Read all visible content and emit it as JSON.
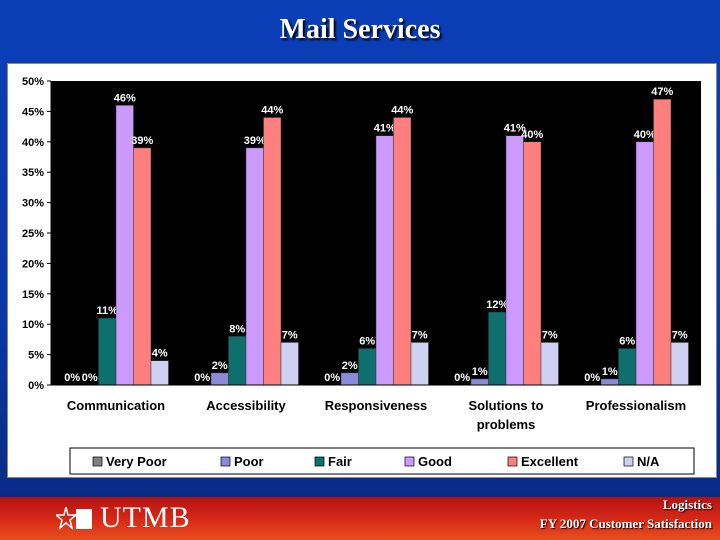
{
  "slide": {
    "title": "Mail Services",
    "footer_line1": "Logistics",
    "footer_line2": "FY 2007 Customer Satisfaction",
    "logo_text": "UTMB"
  },
  "chart_data": {
    "type": "bar",
    "categories": [
      "Communication",
      "Accessibility",
      "Responsiveness",
      "Solutions to problems",
      "Professionalism"
    ],
    "series": [
      {
        "name": "Very Poor",
        "color": "#808080",
        "values": [
          0,
          0,
          0,
          0,
          0
        ]
      },
      {
        "name": "Poor",
        "color": "#8a8ad8",
        "values": [
          0,
          2,
          2,
          1,
          1
        ]
      },
      {
        "name": "Fair",
        "color": "#0f6e6e",
        "values": [
          11,
          8,
          6,
          12,
          6
        ]
      },
      {
        "name": "Good",
        "color": "#cc99ff",
        "values": [
          46,
          39,
          41,
          41,
          40
        ]
      },
      {
        "name": "Excellent",
        "color": "#ff7f7f",
        "values": [
          39,
          44,
          44,
          40,
          47
        ]
      },
      {
        "name": "N/A",
        "color": "#cfd0f2",
        "values": [
          4,
          7,
          7,
          7,
          7
        ]
      }
    ],
    "data_labels": [
      [
        "0%",
        "0%",
        "11%",
        "46%",
        "39%",
        "4%"
      ],
      [
        "0%",
        "2%",
        "8%",
        "39%",
        "44%",
        "7%"
      ],
      [
        "0%",
        "2%",
        "6%",
        "41%",
        "44%",
        "7%"
      ],
      [
        "0%",
        "1%",
        "12%",
        "41%",
        "40%",
        "7%"
      ],
      [
        "0%",
        "1%",
        "6%",
        "40%",
        "47%",
        "7%"
      ]
    ],
    "y_ticks": [
      "0%",
      "5%",
      "10%",
      "15%",
      "20%",
      "25%",
      "30%",
      "35%",
      "40%",
      "45%",
      "50%"
    ],
    "ylim": [
      0,
      50
    ],
    "plot_background": "#000000",
    "legend_position": "bottom",
    "grid": false
  }
}
